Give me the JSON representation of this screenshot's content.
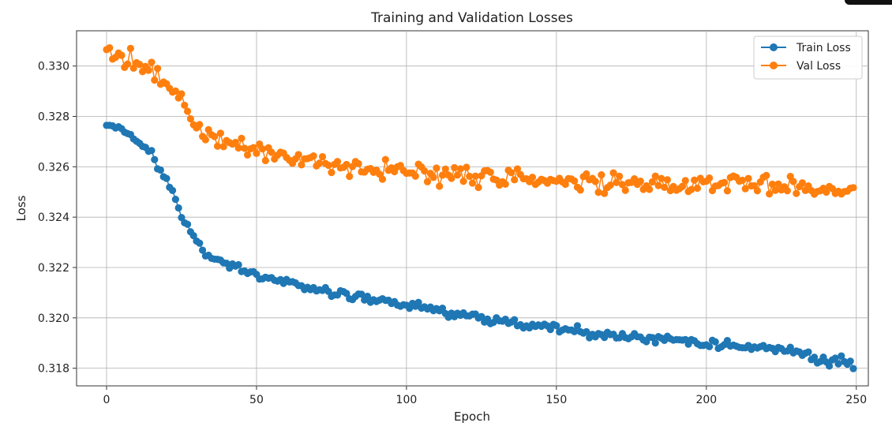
{
  "chart_data": {
    "type": "line",
    "title": "Training and Validation Losses",
    "xlabel": "Epoch",
    "ylabel": "Loss",
    "xlim": [
      -10,
      254
    ],
    "ylim": [
      0.3173,
      0.3314
    ],
    "xticks": [
      0,
      50,
      100,
      150,
      200,
      250
    ],
    "yticks": [
      0.318,
      0.32,
      0.322,
      0.324,
      0.326,
      0.328,
      0.33
    ],
    "ytick_labels": [
      "0.318",
      "0.320",
      "0.322",
      "0.324",
      "0.326",
      "0.328",
      "0.330"
    ],
    "grid": true,
    "legend_position": "top-right",
    "series": [
      {
        "name": "Train Loss",
        "color": "#1f77b4",
        "anchors_x": [
          0,
          10,
          15,
          20,
          25,
          30,
          35,
          40,
          50,
          60,
          70,
          80,
          90,
          100,
          110,
          120,
          130,
          140,
          150,
          160,
          170,
          180,
          190,
          200,
          210,
          220,
          230,
          240,
          245,
          249
        ],
        "anchors_y": [
          0.3277,
          0.3271,
          0.3265,
          0.3255,
          0.324,
          0.323,
          0.3224,
          0.3221,
          0.3217,
          0.3214,
          0.3211,
          0.3209,
          0.3207,
          0.3205,
          0.3203,
          0.3201,
          0.3199,
          0.3197,
          0.3196,
          0.3194,
          0.3193,
          0.3192,
          0.3191,
          0.319,
          0.3189,
          0.3188,
          0.3187,
          0.3182,
          0.3184,
          0.3181
        ],
        "noise": 0.00013
      },
      {
        "name": "Val Loss",
        "color": "#ff7f0e",
        "anchors_x": [
          0,
          10,
          15,
          20,
          25,
          30,
          35,
          40,
          50,
          60,
          70,
          80,
          90,
          100,
          110,
          120,
          130,
          140,
          150,
          160,
          170,
          180,
          190,
          200,
          210,
          220,
          230,
          240,
          245,
          249
        ],
        "anchors_y": [
          0.3305,
          0.3302,
          0.3298,
          0.3293,
          0.3287,
          0.3277,
          0.3271,
          0.3269,
          0.3266,
          0.3263,
          0.3262,
          0.326,
          0.3259,
          0.3258,
          0.3257,
          0.3256,
          0.3256,
          0.3255,
          0.3254,
          0.3254,
          0.3253,
          0.3252,
          0.3252,
          0.3253,
          0.3254,
          0.3253,
          0.3253,
          0.3252,
          0.325,
          0.3252
        ],
        "noise": 0.00028
      }
    ]
  }
}
